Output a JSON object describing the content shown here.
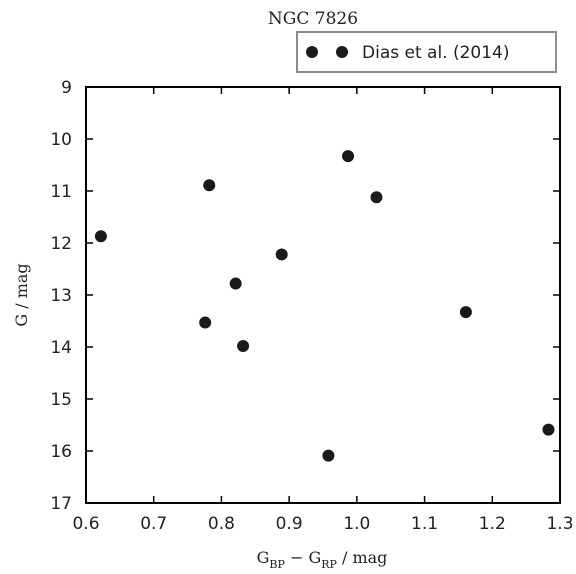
{
  "chart_data": {
    "type": "scatter",
    "title": "NGC 7826",
    "xlabel": {
      "main": "G",
      "sub1": "BP",
      "mid": " − G",
      "sub2": "RP",
      "tail": " / mag"
    },
    "ylabel": "G / mag",
    "xlim": [
      0.6,
      1.3
    ],
    "ylim": [
      17,
      9
    ],
    "y_inverted": true,
    "xticks": [
      "0.6",
      "0.7",
      "0.8",
      "0.9",
      "1.0",
      "1.1",
      "1.2",
      "1.3"
    ],
    "yticks": [
      "9",
      "10",
      "11",
      "12",
      "13",
      "14",
      "15",
      "16",
      "17"
    ],
    "grid": false,
    "legend_position": "above-top-right",
    "series": [
      {
        "name": "Dias et al. (2014)",
        "color": "#1a1a1a",
        "marker": "circle",
        "points": [
          {
            "x": 0.622,
            "y": 11.87
          },
          {
            "x": 0.782,
            "y": 10.89
          },
          {
            "x": 0.987,
            "y": 10.33
          },
          {
            "x": 1.029,
            "y": 11.12
          },
          {
            "x": 0.889,
            "y": 12.22
          },
          {
            "x": 0.821,
            "y": 12.78
          },
          {
            "x": 0.776,
            "y": 13.53
          },
          {
            "x": 0.832,
            "y": 13.98
          },
          {
            "x": 1.161,
            "y": 13.33
          },
          {
            "x": 0.958,
            "y": 16.09
          },
          {
            "x": 1.283,
            "y": 15.59
          }
        ]
      }
    ]
  }
}
